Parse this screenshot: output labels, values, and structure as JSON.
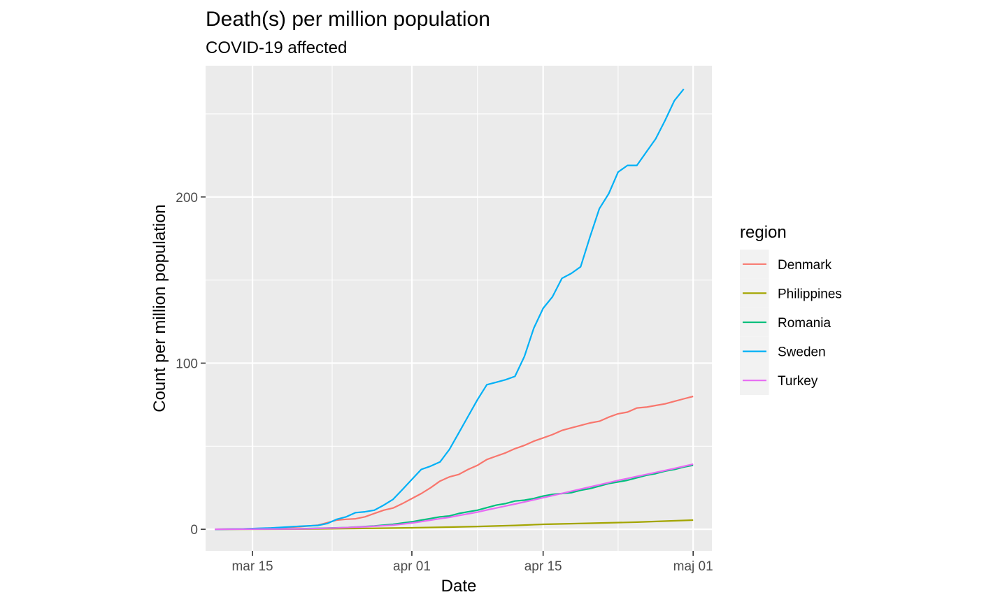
{
  "chart_data": {
    "type": "line",
    "title": "Death(s) per million population",
    "subtitle": "COVID-19 affected",
    "xlabel": "Date",
    "ylabel": "Count per million population",
    "x_range": [
      "2020-03-10",
      "2020-05-03"
    ],
    "ylim": [
      -13,
      279
    ],
    "x_ticks": [
      {
        "label": "mar 15",
        "date": "2020-03-15"
      },
      {
        "label": "apr 01",
        "date": "2020-04-01"
      },
      {
        "label": "apr 15",
        "date": "2020-04-15"
      },
      {
        "label": "maj 01",
        "date": "2020-05-01"
      }
    ],
    "y_ticks": [
      0,
      100,
      200
    ],
    "grid": true,
    "background": "#ebebeb",
    "legend": {
      "title": "region",
      "position": "right"
    },
    "series": [
      {
        "name": "Denmark",
        "color": "#F8766D",
        "points": [
          [
            "2020-03-11",
            0
          ],
          [
            "2020-03-14",
            0.2
          ],
          [
            "2020-03-17",
            0.7
          ],
          [
            "2020-03-20",
            1.5
          ],
          [
            "2020-03-22",
            2.5
          ],
          [
            "2020-03-24",
            5.5
          ],
          [
            "2020-03-25",
            6
          ],
          [
            "2020-03-26",
            6.3
          ],
          [
            "2020-03-27",
            7.5
          ],
          [
            "2020-03-28",
            9.5
          ],
          [
            "2020-03-29",
            11.5
          ],
          [
            "2020-03-30",
            12.8
          ],
          [
            "2020-03-31",
            15.5
          ],
          [
            "2020-04-01",
            18.5
          ],
          [
            "2020-04-02",
            21.5
          ],
          [
            "2020-04-03",
            25
          ],
          [
            "2020-04-04",
            29
          ],
          [
            "2020-04-05",
            31.5
          ],
          [
            "2020-04-06",
            33
          ],
          [
            "2020-04-07",
            36
          ],
          [
            "2020-04-08",
            38.5
          ],
          [
            "2020-04-09",
            42
          ],
          [
            "2020-04-10",
            44
          ],
          [
            "2020-04-11",
            46
          ],
          [
            "2020-04-12",
            48.5
          ],
          [
            "2020-04-13",
            50.5
          ],
          [
            "2020-04-14",
            53
          ],
          [
            "2020-04-15",
            55
          ],
          [
            "2020-04-16",
            57
          ],
          [
            "2020-04-17",
            59.5
          ],
          [
            "2020-04-18",
            61
          ],
          [
            "2020-04-19",
            62.5
          ],
          [
            "2020-04-20",
            64
          ],
          [
            "2020-04-21",
            65
          ],
          [
            "2020-04-22",
            67.5
          ],
          [
            "2020-04-23",
            69.5
          ],
          [
            "2020-04-24",
            70.5
          ],
          [
            "2020-04-25",
            73
          ],
          [
            "2020-04-26",
            73.5
          ],
          [
            "2020-04-27",
            74.5
          ],
          [
            "2020-04-28",
            75.5
          ],
          [
            "2020-04-29",
            77
          ],
          [
            "2020-04-30",
            78.5
          ],
          [
            "2020-05-01",
            80
          ]
        ]
      },
      {
        "name": "Philippines",
        "color": "#A3A500",
        "points": [
          [
            "2020-03-11",
            0
          ],
          [
            "2020-03-20",
            0.1
          ],
          [
            "2020-03-25",
            0.4
          ],
          [
            "2020-03-30",
            0.7
          ],
          [
            "2020-04-01",
            0.9
          ],
          [
            "2020-04-05",
            1.3
          ],
          [
            "2020-04-08",
            1.7
          ],
          [
            "2020-04-12",
            2.3
          ],
          [
            "2020-04-15",
            3
          ],
          [
            "2020-04-20",
            3.6
          ],
          [
            "2020-04-25",
            4.3
          ],
          [
            "2020-05-01",
            5.5
          ]
        ]
      },
      {
        "name": "Romania",
        "color": "#00BF7D",
        "points": [
          [
            "2020-03-11",
            0
          ],
          [
            "2020-03-20",
            0.3
          ],
          [
            "2020-03-25",
            1
          ],
          [
            "2020-03-28",
            2
          ],
          [
            "2020-03-30",
            3
          ],
          [
            "2020-04-01",
            4.5
          ],
          [
            "2020-04-02",
            5.5
          ],
          [
            "2020-04-03",
            6.5
          ],
          [
            "2020-04-04",
            7.5
          ],
          [
            "2020-04-05",
            8
          ],
          [
            "2020-04-06",
            9.5
          ],
          [
            "2020-04-07",
            10.5
          ],
          [
            "2020-04-08",
            11.5
          ],
          [
            "2020-04-09",
            13
          ],
          [
            "2020-04-10",
            14.5
          ],
          [
            "2020-04-11",
            15.5
          ],
          [
            "2020-04-12",
            17
          ],
          [
            "2020-04-13",
            17.5
          ],
          [
            "2020-04-14",
            18.5
          ],
          [
            "2020-04-15",
            20
          ],
          [
            "2020-04-16",
            21
          ],
          [
            "2020-04-17",
            21.5
          ],
          [
            "2020-04-18",
            22
          ],
          [
            "2020-04-19",
            23.5
          ],
          [
            "2020-04-20",
            24.5
          ],
          [
            "2020-04-21",
            26
          ],
          [
            "2020-04-22",
            27.5
          ],
          [
            "2020-04-23",
            28.5
          ],
          [
            "2020-04-24",
            29.5
          ],
          [
            "2020-04-25",
            31
          ],
          [
            "2020-04-26",
            32.5
          ],
          [
            "2020-04-27",
            33.5
          ],
          [
            "2020-04-28",
            35
          ],
          [
            "2020-04-29",
            36
          ],
          [
            "2020-04-30",
            37.5
          ],
          [
            "2020-05-01",
            38.5
          ]
        ]
      },
      {
        "name": "Sweden",
        "color": "#00B0F6",
        "points": [
          [
            "2020-03-11",
            0
          ],
          [
            "2020-03-14",
            0.2
          ],
          [
            "2020-03-17",
            0.8
          ],
          [
            "2020-03-20",
            1.8
          ],
          [
            "2020-03-22",
            2.3
          ],
          [
            "2020-03-23",
            3.5
          ],
          [
            "2020-03-24",
            6
          ],
          [
            "2020-03-25",
            7.5
          ],
          [
            "2020-03-26",
            10
          ],
          [
            "2020-03-27",
            10.5
          ],
          [
            "2020-03-28",
            11.5
          ],
          [
            "2020-03-29",
            14.5
          ],
          [
            "2020-03-30",
            18
          ],
          [
            "2020-03-31",
            24
          ],
          [
            "2020-04-01",
            30
          ],
          [
            "2020-04-02",
            36
          ],
          [
            "2020-04-03",
            38
          ],
          [
            "2020-04-04",
            40.5
          ],
          [
            "2020-04-05",
            48
          ],
          [
            "2020-04-06",
            58
          ],
          [
            "2020-04-07",
            68
          ],
          [
            "2020-04-08",
            78
          ],
          [
            "2020-04-09",
            87
          ],
          [
            "2020-04-10",
            88.5
          ],
          [
            "2020-04-11",
            90
          ],
          [
            "2020-04-12",
            92
          ],
          [
            "2020-04-13",
            104
          ],
          [
            "2020-04-14",
            121
          ],
          [
            "2020-04-15",
            133
          ],
          [
            "2020-04-16",
            140
          ],
          [
            "2020-04-17",
            151
          ],
          [
            "2020-04-18",
            154
          ],
          [
            "2020-04-19",
            158
          ],
          [
            "2020-04-20",
            176
          ],
          [
            "2020-04-21",
            193
          ],
          [
            "2020-04-22",
            202
          ],
          [
            "2020-04-23",
            215
          ],
          [
            "2020-04-24",
            219
          ],
          [
            "2020-04-25",
            219
          ],
          [
            "2020-04-26",
            227
          ],
          [
            "2020-04-27",
            235
          ],
          [
            "2020-04-28",
            246
          ],
          [
            "2020-04-29",
            258
          ],
          [
            "2020-04-30",
            265
          ]
        ]
      },
      {
        "name": "Turkey",
        "color": "#E76BF3",
        "points": [
          [
            "2020-03-11",
            0
          ],
          [
            "2020-03-20",
            0.2
          ],
          [
            "2020-03-24",
            0.8
          ],
          [
            "2020-03-27",
            1.5
          ],
          [
            "2020-03-30",
            2.5
          ],
          [
            "2020-04-01",
            3.8
          ],
          [
            "2020-04-02",
            4.6
          ],
          [
            "2020-04-03",
            5.5
          ],
          [
            "2020-04-04",
            6.4
          ],
          [
            "2020-04-05",
            7.2
          ],
          [
            "2020-04-06",
            8.3
          ],
          [
            "2020-04-07",
            9.3
          ],
          [
            "2020-04-08",
            10.3
          ],
          [
            "2020-04-09",
            11.6
          ],
          [
            "2020-04-10",
            12.8
          ],
          [
            "2020-04-11",
            14
          ],
          [
            "2020-04-12",
            15.2
          ],
          [
            "2020-04-13",
            16.4
          ],
          [
            "2020-04-14",
            17.7
          ],
          [
            "2020-04-15",
            19
          ],
          [
            "2020-04-16",
            20.3
          ],
          [
            "2020-04-17",
            21.6
          ],
          [
            "2020-04-18",
            22.9
          ],
          [
            "2020-04-19",
            24.2
          ],
          [
            "2020-04-20",
            25.5
          ],
          [
            "2020-04-21",
            26.8
          ],
          [
            "2020-04-22",
            28.1
          ],
          [
            "2020-04-23",
            29.4
          ],
          [
            "2020-04-24",
            30.6
          ],
          [
            "2020-04-25",
            31.8
          ],
          [
            "2020-04-26",
            33
          ],
          [
            "2020-04-27",
            34.2
          ],
          [
            "2020-04-28",
            35.4
          ],
          [
            "2020-04-29",
            36.6
          ],
          [
            "2020-04-30",
            37.9
          ],
          [
            "2020-05-01",
            39.2
          ]
        ]
      }
    ]
  }
}
